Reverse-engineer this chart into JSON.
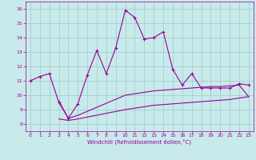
{
  "xlabel": "Windchill (Refroidissement éolien,°C)",
  "xlim": [
    -0.5,
    23.5
  ],
  "ylim": [
    7.5,
    16.5
  ],
  "yticks": [
    8,
    9,
    10,
    11,
    12,
    13,
    14,
    15,
    16
  ],
  "xticks": [
    0,
    1,
    2,
    3,
    4,
    5,
    6,
    7,
    8,
    9,
    10,
    11,
    12,
    13,
    14,
    15,
    16,
    17,
    18,
    19,
    20,
    21,
    22,
    23
  ],
  "bg_color": "#c8eaea",
  "grid_color": "#a0c8c8",
  "line_color": "#990099",
  "line1_x": [
    0,
    1,
    2,
    3,
    4,
    5,
    6,
    7,
    8,
    9,
    10,
    11,
    12,
    13,
    14,
    15,
    16,
    17,
    18,
    19,
    20,
    21,
    22,
    23
  ],
  "line1_y": [
    11.0,
    11.3,
    11.5,
    9.5,
    8.4,
    9.4,
    11.4,
    13.1,
    11.5,
    13.3,
    15.9,
    15.4,
    13.9,
    14.0,
    14.4,
    11.8,
    10.7,
    11.5,
    10.5,
    10.5,
    10.5,
    10.5,
    10.8,
    10.7
  ],
  "line2_x": [
    3,
    4,
    5,
    10,
    11,
    12,
    13,
    14,
    15,
    16,
    17,
    18,
    19,
    20,
    21,
    22,
    23
  ],
  "line2_y": [
    9.6,
    8.4,
    8.6,
    10.0,
    10.1,
    10.2,
    10.3,
    10.35,
    10.4,
    10.45,
    10.5,
    10.55,
    10.6,
    10.6,
    10.65,
    10.7,
    9.9
  ],
  "line3_x": [
    3,
    4,
    5,
    10,
    11,
    12,
    13,
    14,
    15,
    16,
    17,
    18,
    19,
    20,
    21,
    22,
    23
  ],
  "line3_y": [
    8.35,
    8.25,
    8.35,
    9.0,
    9.1,
    9.2,
    9.3,
    9.35,
    9.4,
    9.45,
    9.5,
    9.55,
    9.6,
    9.65,
    9.7,
    9.8,
    9.9
  ]
}
